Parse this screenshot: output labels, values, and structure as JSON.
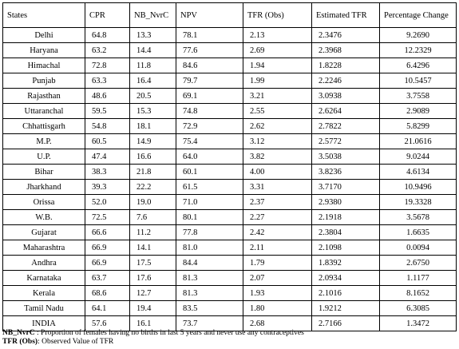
{
  "table": {
    "headers": [
      "States",
      "CPR",
      "NB_NvrC",
      "NPV",
      "TFR (Obs)",
      "Estimated TFR",
      "Percentage Change"
    ],
    "rows": [
      [
        "Delhi",
        "64.8",
        "13.3",
        "78.1",
        "2.13",
        "2.3476",
        "9.2690"
      ],
      [
        "Haryana",
        "63.2",
        "14.4",
        "77.6",
        "2.69",
        "2.3968",
        "12.2329"
      ],
      [
        "Himachal",
        "72.8",
        "11.8",
        "84.6",
        "1.94",
        "1.8228",
        "6.4296"
      ],
      [
        "Punjab",
        "63.3",
        "16.4",
        "79.7",
        "1.99",
        "2.2246",
        "10.5457"
      ],
      [
        "Rajasthan",
        "48.6",
        "20.5",
        "69.1",
        "3.21",
        "3.0938",
        "3.7558"
      ],
      [
        "Uttaranchal",
        "59.5",
        "15.3",
        "74.8",
        "2.55",
        "2.6264",
        "2.9089"
      ],
      [
        "Chhattisgarh",
        "54.8",
        "18.1",
        "72.9",
        "2.62",
        "2.7822",
        "5.8299"
      ],
      [
        "M.P.",
        "60.5",
        "14.9",
        "75.4",
        "3.12",
        "2.5772",
        "21.0616"
      ],
      [
        "U.P.",
        "47.4",
        "16.6",
        "64.0",
        "3.82",
        "3.5038",
        "9.0244"
      ],
      [
        "Bihar",
        "38.3",
        "21.8",
        "60.1",
        "4.00",
        "3.8236",
        "4.6134"
      ],
      [
        "Jharkhand",
        "39.3",
        "22.2",
        "61.5",
        "3.31",
        "3.7170",
        "10.9496"
      ],
      [
        "Orissa",
        "52.0",
        "19.0",
        "71.0",
        "2.37",
        "2.9380",
        "19.3328"
      ],
      [
        "W.B.",
        "72.5",
        "7.6",
        "80.1",
        "2.27",
        "2.1918",
        "3.5678"
      ],
      [
        "Gujarat",
        "66.6",
        "11.2",
        "77.8",
        "2.42",
        "2.3804",
        "1.6635"
      ],
      [
        "Maharashtra",
        "66.9",
        "14.1",
        "81.0",
        "2.11",
        "2.1098",
        "0.0094"
      ],
      [
        "Andhra",
        "66.9",
        "17.5",
        "84.4",
        "1.79",
        "1.8392",
        "2.6750"
      ],
      [
        "Karnataka",
        "63.7",
        "17.6",
        "81.3",
        "2.07",
        "2.0934",
        "1.1177"
      ],
      [
        "Kerala",
        "68.6",
        "12.7",
        "81.3",
        "1.93",
        "2.1016",
        "8.1652"
      ],
      [
        "Tamil Nadu",
        "64.1",
        "19.4",
        "83.5",
        "1.80",
        "1.9212",
        "6.3085"
      ],
      [
        "INDIA",
        "57.6",
        "16.1",
        "73.7",
        "2.68",
        "2.7166",
        "1.3472"
      ]
    ]
  },
  "notes": [
    {
      "term": "NB_NvrC",
      "text": " : Proportion of females having no births in last 5 years and never use any contraceptives"
    },
    {
      "term": "TFR (Obs)",
      "text": ": Observed Value of TFR"
    }
  ]
}
